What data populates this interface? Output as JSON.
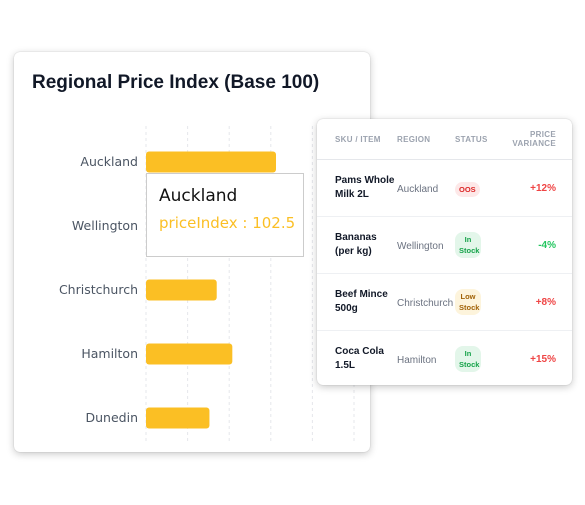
{
  "chart_card": {
    "title": "Regional Price Index (Base 100)"
  },
  "chart_data": {
    "type": "bar",
    "orientation": "horizontal",
    "title": "Regional Price Index (Base 100)",
    "categories": [
      "Auckland",
      "Wellington",
      "Christchurch",
      "Hamilton",
      "Dunedin"
    ],
    "series": [
      {
        "key": "priceIndex",
        "values": [
          102.5,
          97,
          96.8,
          98.3,
          96.1
        ]
      }
    ],
    "xlim": [
      90,
      110
    ],
    "grid": "vertical-dashed",
    "bar_color": "#fbbf24"
  },
  "tooltip": {
    "title": "Auckland",
    "value_text": "priceIndex : 102.5"
  },
  "table": {
    "headers": {
      "sku": "SKU / ITEM",
      "region": "REGION",
      "status": "STATUS",
      "variance_line1": "PRICE",
      "variance_line2": "VARIANCE"
    },
    "rows": [
      {
        "sku_line1": "Pams Whole",
        "sku_line2": "Milk 2L",
        "region": "Auckland",
        "status_line1": "OOS",
        "status_line2": "",
        "variance": "+12%"
      },
      {
        "sku_line1": "Bananas",
        "sku_line2": "(per kg)",
        "region": "Wellington",
        "status_line1": "In",
        "status_line2": "Stock",
        "variance": "-4%"
      },
      {
        "sku_line1": "Beef Mince",
        "sku_line2": "500g",
        "region": "Christchurch",
        "status_line1": "Low",
        "status_line2": "Stock",
        "variance": "+8%"
      },
      {
        "sku_line1": "Coca Cola",
        "sku_line2": "1.5L",
        "region": "Hamilton",
        "status_line1": "In",
        "status_line2": "Stock",
        "variance": "+15%"
      }
    ]
  },
  "colors": {
    "bar": "#fbbf24",
    "variance_up": "#ef4444",
    "variance_down": "#22c55e",
    "oos_badge": "#dc2626",
    "in_stock_badge": "#16a34a",
    "low_stock_badge": "#a16207"
  }
}
